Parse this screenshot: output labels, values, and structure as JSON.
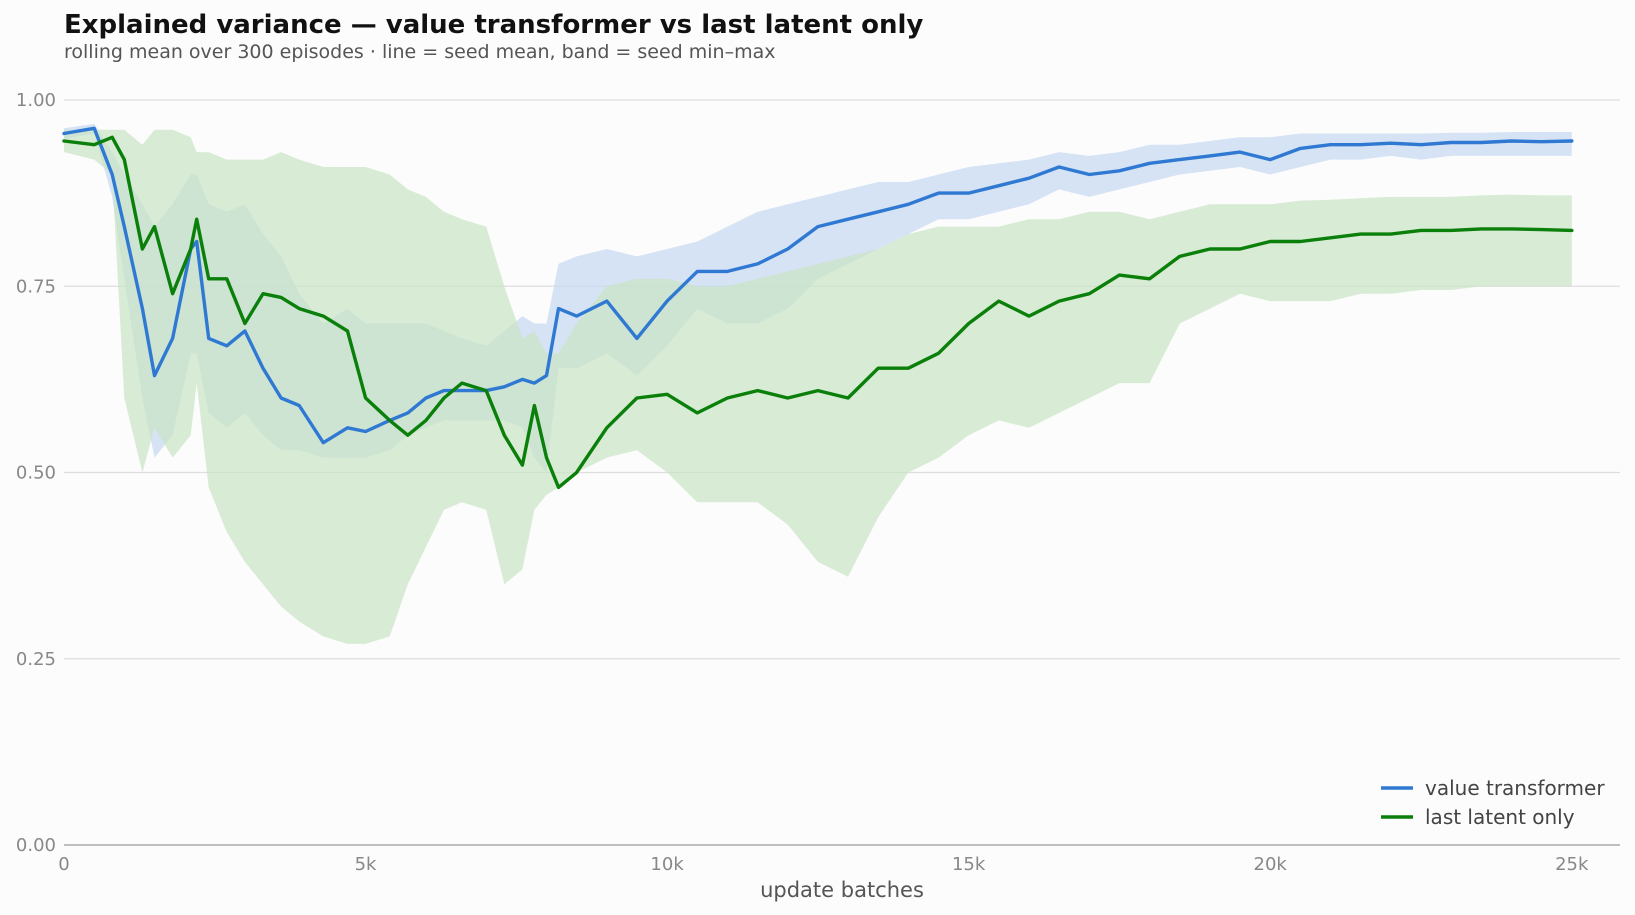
{
  "chart_data": {
    "type": "line",
    "title": "Explained variance — value transformer vs last latent only",
    "subtitle": "rolling mean over 300 episodes · line = seed mean, band = seed min–max",
    "xlabel": "update batches",
    "ylabel": "",
    "xlim": [
      0,
      25800
    ],
    "ylim": [
      0,
      1.0
    ],
    "x_ticks": [
      0,
      5000,
      10000,
      15000,
      20000,
      25000
    ],
    "x_tick_labels": [
      "0",
      "5k",
      "10k",
      "15k",
      "20k",
      "25k"
    ],
    "y_ticks": [
      0,
      0.25,
      0.5,
      0.75,
      1.0
    ],
    "y_tick_labels": [
      "0.00",
      "0.25",
      "0.50",
      "0.75",
      "1.00"
    ],
    "grid": "horizontal",
    "legend_position": "bottom-right",
    "x": [
      0,
      500,
      800,
      1000,
      1300,
      1500,
      1800,
      2100,
      2200,
      2400,
      2700,
      3000,
      3300,
      3600,
      3900,
      4300,
      4700,
      5000,
      5400,
      5700,
      6000,
      6300,
      6600,
      7000,
      7300,
      7600,
      7800,
      8000,
      8200,
      8500,
      9000,
      9500,
      10000,
      10500,
      11000,
      11500,
      12000,
      12500,
      13000,
      13500,
      14000,
      14500,
      15000,
      15500,
      16000,
      16500,
      17000,
      17500,
      18000,
      18500,
      19000,
      19500,
      20000,
      20500,
      21000,
      21500,
      22000,
      22500,
      23000,
      23500,
      24000,
      24500,
      25000
    ],
    "series": [
      {
        "name": "value transformer",
        "color": "#2f79d3",
        "band_color": "#c6d9f2",
        "mean": [
          0.955,
          0.962,
          0.9,
          0.83,
          0.72,
          0.63,
          0.68,
          0.8,
          0.81,
          0.68,
          0.67,
          0.69,
          0.64,
          0.6,
          0.59,
          0.54,
          0.56,
          0.555,
          0.57,
          0.58,
          0.6,
          0.61,
          0.61,
          0.61,
          0.615,
          0.625,
          0.62,
          0.63,
          0.72,
          0.71,
          0.73,
          0.68,
          0.73,
          0.77,
          0.77,
          0.78,
          0.8,
          0.83,
          0.84,
          0.85,
          0.86,
          0.875,
          0.875,
          0.885,
          0.895,
          0.91,
          0.9,
          0.905,
          0.915,
          0.92,
          0.925,
          0.93,
          0.92,
          0.935,
          0.94,
          0.94,
          0.942,
          0.94,
          0.943,
          0.943,
          0.945,
          0.944,
          0.945
        ],
        "upper": [
          0.962,
          0.968,
          0.93,
          0.9,
          0.86,
          0.83,
          0.86,
          0.9,
          0.9,
          0.86,
          0.85,
          0.86,
          0.82,
          0.79,
          0.74,
          0.7,
          0.72,
          0.7,
          0.7,
          0.7,
          0.7,
          0.69,
          0.68,
          0.67,
          0.69,
          0.71,
          0.7,
          0.7,
          0.78,
          0.79,
          0.8,
          0.79,
          0.8,
          0.81,
          0.83,
          0.85,
          0.86,
          0.87,
          0.88,
          0.89,
          0.89,
          0.9,
          0.91,
          0.915,
          0.92,
          0.93,
          0.925,
          0.93,
          0.94,
          0.94,
          0.945,
          0.95,
          0.95,
          0.955,
          0.955,
          0.955,
          0.955,
          0.955,
          0.956,
          0.956,
          0.957,
          0.957,
          0.957
        ],
        "lower": [
          0.948,
          0.955,
          0.87,
          0.76,
          0.6,
          0.52,
          0.55,
          0.66,
          0.66,
          0.58,
          0.56,
          0.58,
          0.55,
          0.53,
          0.53,
          0.52,
          0.52,
          0.52,
          0.53,
          0.55,
          0.56,
          0.57,
          0.57,
          0.57,
          0.57,
          0.56,
          0.52,
          0.5,
          0.64,
          0.64,
          0.66,
          0.63,
          0.67,
          0.72,
          0.7,
          0.7,
          0.72,
          0.76,
          0.78,
          0.8,
          0.82,
          0.84,
          0.84,
          0.85,
          0.86,
          0.88,
          0.87,
          0.88,
          0.89,
          0.9,
          0.905,
          0.91,
          0.9,
          0.91,
          0.92,
          0.92,
          0.925,
          0.92,
          0.925,
          0.925,
          0.925,
          0.925,
          0.925
        ]
      },
      {
        "name": "last latent only",
        "color": "#0a7f0a",
        "band_color": "#c9e4c4",
        "mean": [
          0.945,
          0.94,
          0.95,
          0.92,
          0.8,
          0.83,
          0.74,
          0.8,
          0.84,
          0.76,
          0.76,
          0.7,
          0.74,
          0.735,
          0.72,
          0.71,
          0.69,
          0.6,
          0.57,
          0.55,
          0.57,
          0.6,
          0.62,
          0.61,
          0.55,
          0.51,
          0.59,
          0.52,
          0.48,
          0.5,
          0.56,
          0.6,
          0.605,
          0.58,
          0.6,
          0.61,
          0.6,
          0.61,
          0.6,
          0.64,
          0.64,
          0.66,
          0.7,
          0.73,
          0.71,
          0.73,
          0.74,
          0.765,
          0.76,
          0.79,
          0.8,
          0.8,
          0.81,
          0.81,
          0.815,
          0.82,
          0.82,
          0.825,
          0.825,
          0.827,
          0.827,
          0.826,
          0.825
        ],
        "upper": [
          0.96,
          0.96,
          0.96,
          0.96,
          0.94,
          0.96,
          0.96,
          0.95,
          0.93,
          0.93,
          0.92,
          0.92,
          0.92,
          0.93,
          0.92,
          0.91,
          0.91,
          0.91,
          0.9,
          0.88,
          0.87,
          0.85,
          0.84,
          0.83,
          0.75,
          0.68,
          0.69,
          0.66,
          0.66,
          0.7,
          0.75,
          0.76,
          0.76,
          0.75,
          0.75,
          0.76,
          0.77,
          0.78,
          0.79,
          0.8,
          0.82,
          0.83,
          0.83,
          0.83,
          0.84,
          0.84,
          0.85,
          0.85,
          0.84,
          0.85,
          0.86,
          0.86,
          0.86,
          0.865,
          0.866,
          0.868,
          0.87,
          0.87,
          0.87,
          0.872,
          0.873,
          0.872,
          0.872
        ],
        "lower": [
          0.93,
          0.92,
          0.9,
          0.6,
          0.5,
          0.56,
          0.52,
          0.55,
          0.62,
          0.48,
          0.42,
          0.38,
          0.35,
          0.32,
          0.3,
          0.28,
          0.27,
          0.27,
          0.28,
          0.35,
          0.4,
          0.45,
          0.46,
          0.45,
          0.35,
          0.37,
          0.45,
          0.47,
          0.48,
          0.5,
          0.52,
          0.53,
          0.5,
          0.46,
          0.46,
          0.46,
          0.43,
          0.38,
          0.36,
          0.44,
          0.5,
          0.52,
          0.55,
          0.57,
          0.56,
          0.58,
          0.6,
          0.62,
          0.62,
          0.7,
          0.72,
          0.74,
          0.73,
          0.73,
          0.73,
          0.74,
          0.74,
          0.745,
          0.745,
          0.75,
          0.75,
          0.75,
          0.75
        ]
      }
    ]
  }
}
